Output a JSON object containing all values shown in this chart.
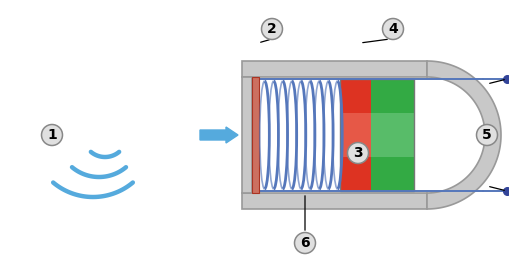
{
  "bg_color": "#ffffff",
  "housing_color": "#c8c8c8",
  "housing_edge": "#999999",
  "membrane_color": "#cc6655",
  "coil_color": "#5577bb",
  "magnet_red": "#dd4433",
  "magnet_green": "#44aa55",
  "wire_color": "#5577bb",
  "arrow_color": "#55aadd",
  "sound_wave_color": "#55aadd",
  "label_bg": "#e0e0e0",
  "label_edge": "#888888",
  "label_font_size": 10
}
